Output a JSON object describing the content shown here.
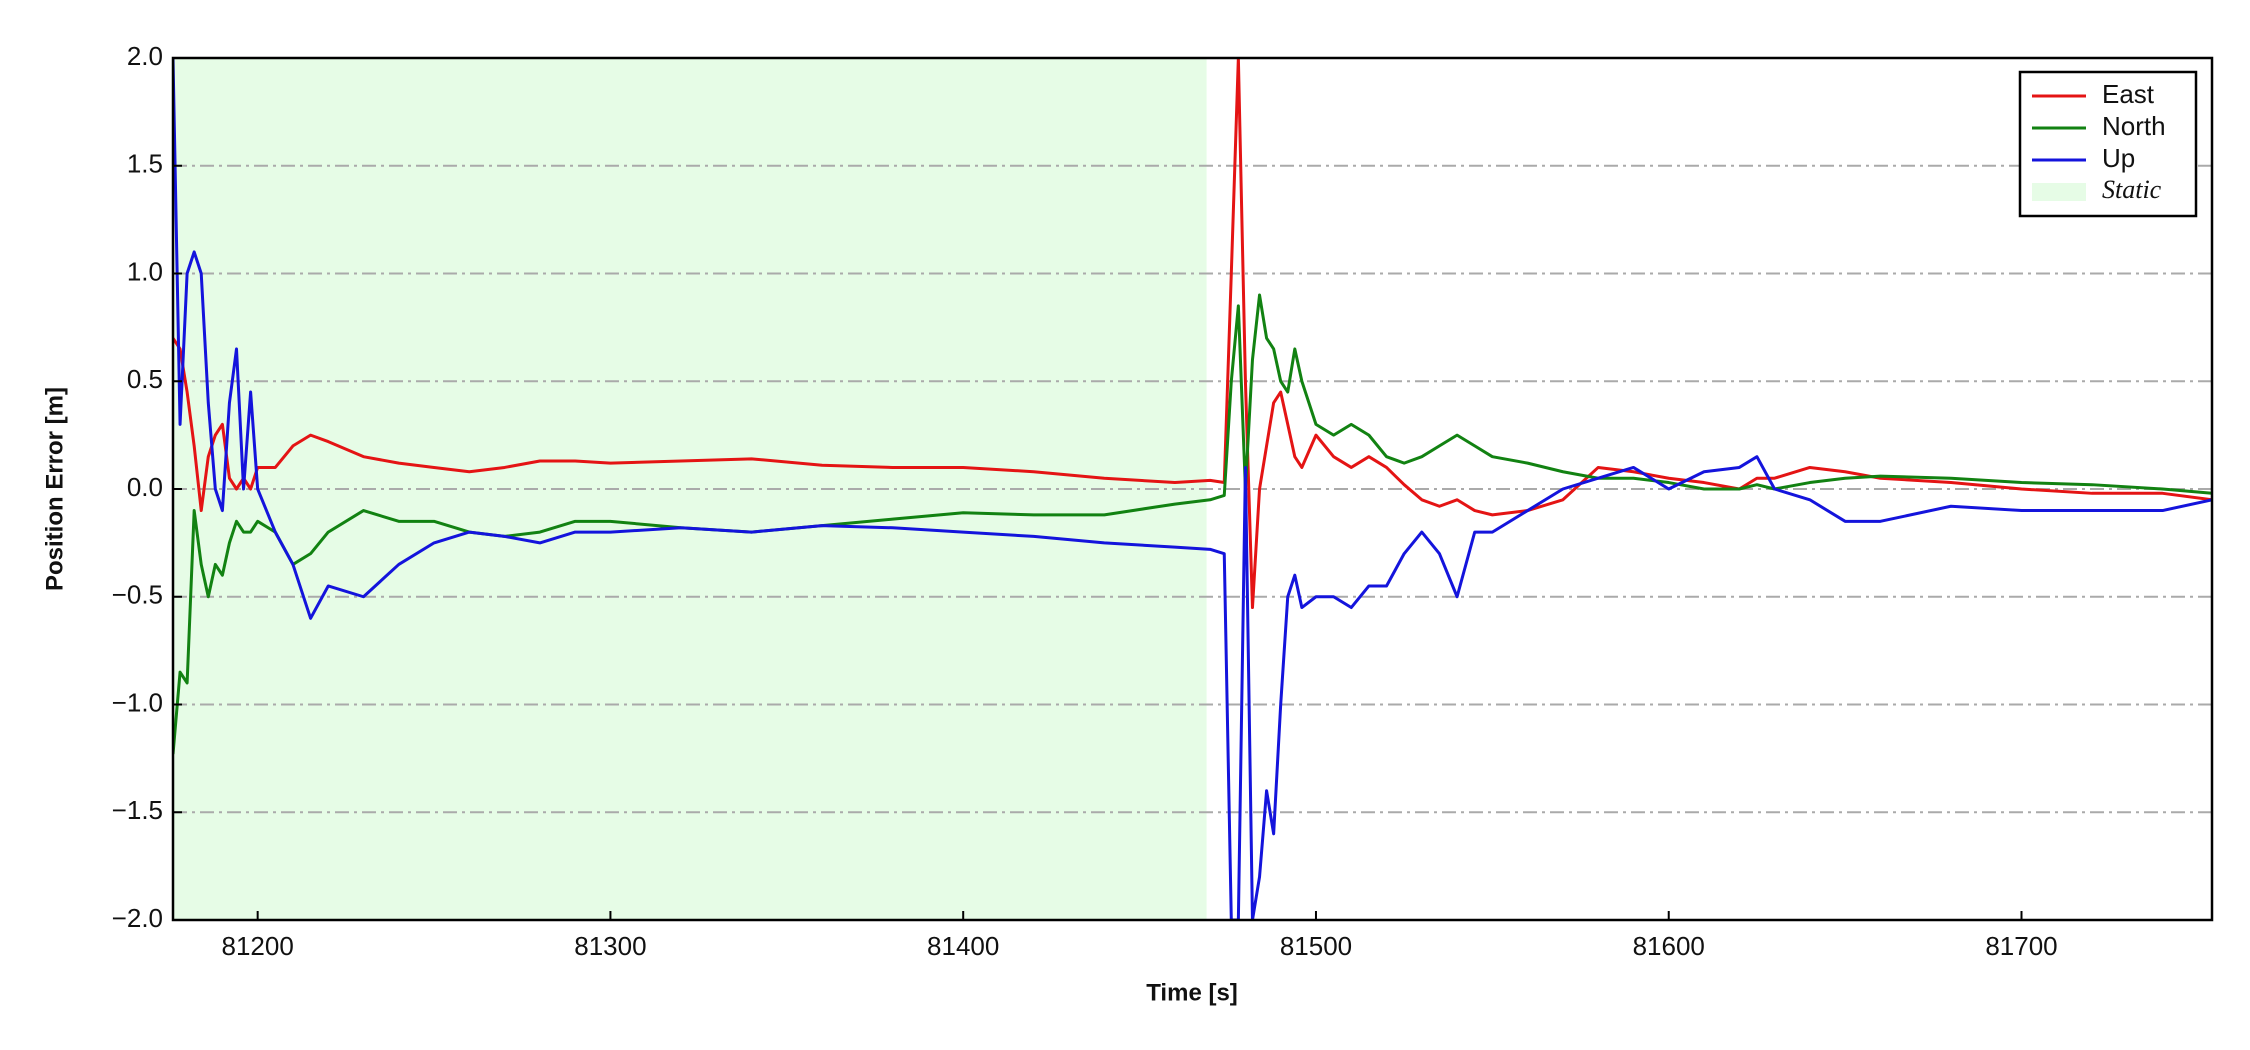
{
  "chart_data": {
    "type": "line",
    "xlabel": "Time [s]",
    "ylabel": "Position Error [m]",
    "x": [
      81176,
      81178,
      81180,
      81182,
      81184,
      81186,
      81188,
      81190,
      81192,
      81194,
      81196,
      81198,
      81200,
      81205,
      81210,
      81215,
      81220,
      81230,
      81240,
      81250,
      81260,
      81270,
      81280,
      81290,
      81300,
      81320,
      81340,
      81360,
      81380,
      81400,
      81420,
      81440,
      81460,
      81470,
      81474,
      81476,
      81478,
      81480,
      81482,
      81484,
      81486,
      81488,
      81490,
      81492,
      81494,
      81496,
      81500,
      81505,
      81510,
      81515,
      81520,
      81525,
      81530,
      81535,
      81540,
      81545,
      81550,
      81560,
      81570,
      81580,
      81590,
      81600,
      81610,
      81620,
      81625,
      81630,
      81640,
      81650,
      81660,
      81680,
      81700,
      81720,
      81740,
      81754
    ],
    "series": [
      {
        "name": "East",
        "color": "#e41414",
        "values": [
          0.7,
          0.65,
          0.45,
          0.2,
          -0.1,
          0.15,
          0.25,
          0.3,
          0.05,
          0.0,
          0.05,
          0.0,
          0.1,
          0.1,
          0.2,
          0.25,
          0.22,
          0.15,
          0.12,
          0.1,
          0.08,
          0.1,
          0.13,
          0.13,
          0.12,
          0.13,
          0.14,
          0.11,
          0.1,
          0.1,
          0.08,
          0.05,
          0.03,
          0.04,
          0.03,
          1.0,
          2.0,
          0.5,
          -0.55,
          0.0,
          0.2,
          0.4,
          0.45,
          0.3,
          0.15,
          0.1,
          0.25,
          0.15,
          0.1,
          0.15,
          0.1,
          0.02,
          -0.05,
          -0.08,
          -0.05,
          -0.1,
          -0.12,
          -0.1,
          -0.05,
          0.1,
          0.08,
          0.05,
          0.03,
          0.0,
          0.05,
          0.05,
          0.1,
          0.08,
          0.05,
          0.03,
          0.0,
          -0.02,
          -0.02,
          -0.05
        ]
      },
      {
        "name": "North",
        "color": "#128212",
        "values": [
          -1.23,
          -0.85,
          -0.9,
          -0.1,
          -0.35,
          -0.5,
          -0.35,
          -0.4,
          -0.25,
          -0.15,
          -0.2,
          -0.2,
          -0.15,
          -0.2,
          -0.35,
          -0.3,
          -0.2,
          -0.1,
          -0.15,
          -0.15,
          -0.2,
          -0.22,
          -0.2,
          -0.15,
          -0.15,
          -0.18,
          -0.2,
          -0.17,
          -0.14,
          -0.11,
          -0.12,
          -0.12,
          -0.07,
          -0.05,
          -0.03,
          0.5,
          0.85,
          0.0,
          0.6,
          0.9,
          0.7,
          0.65,
          0.5,
          0.45,
          0.65,
          0.5,
          0.3,
          0.25,
          0.3,
          0.25,
          0.15,
          0.12,
          0.15,
          0.2,
          0.25,
          0.2,
          0.15,
          0.12,
          0.08,
          0.05,
          0.05,
          0.03,
          0.0,
          0.0,
          0.02,
          0.0,
          0.03,
          0.05,
          0.06,
          0.05,
          0.03,
          0.02,
          0.0,
          -0.02
        ]
      },
      {
        "name": "Up",
        "color": "#1414dc",
        "values": [
          2.0,
          0.3,
          1.0,
          1.1,
          1.0,
          0.4,
          0.0,
          -0.1,
          0.4,
          0.65,
          0.0,
          0.45,
          0.0,
          -0.2,
          -0.35,
          -0.6,
          -0.45,
          -0.5,
          -0.35,
          -0.25,
          -0.2,
          -0.22,
          -0.25,
          -0.2,
          -0.2,
          -0.18,
          -0.2,
          -0.17,
          -0.18,
          -0.2,
          -0.22,
          -0.25,
          -0.27,
          -0.28,
          -0.3,
          -2.0,
          -2.0,
          0.1,
          -2.0,
          -1.8,
          -1.4,
          -1.6,
          -1.0,
          -0.5,
          -0.4,
          -0.55,
          -0.5,
          -0.5,
          -0.55,
          -0.45,
          -0.45,
          -0.3,
          -0.2,
          -0.3,
          -0.5,
          -0.2,
          -0.2,
          -0.1,
          0.0,
          0.05,
          0.1,
          0.0,
          0.08,
          0.1,
          0.15,
          0.0,
          -0.05,
          -0.15,
          -0.15,
          -0.08,
          -0.1,
          -0.1,
          -0.1,
          -0.05
        ]
      }
    ],
    "spans": [
      {
        "name": "Static",
        "start": 81176,
        "end": 81469,
        "color": "#e6fce6"
      }
    ],
    "xlim": [
      81176,
      81754
    ],
    "xticks": [
      81200,
      81300,
      81400,
      81500,
      81600,
      81700
    ],
    "ylim": [
      -2,
      2
    ],
    "yticks": [
      {
        "value": -2,
        "label": "−2.0"
      },
      {
        "value": -1.5,
        "label": "−1.5"
      },
      {
        "value": -1,
        "label": "−1.0"
      },
      {
        "value": -0.5,
        "label": "−0.5"
      },
      {
        "value": 0,
        "label": "0.0"
      },
      0.5,
      {
        "value": 1,
        "label": "1.0"
      },
      1.5,
      {
        "value": 2,
        "label": "2.0"
      }
    ],
    "grid": true,
    "legend": "upper right"
  }
}
